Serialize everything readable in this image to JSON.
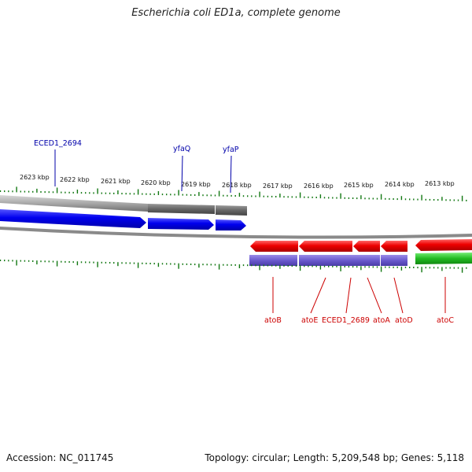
{
  "title": "Escherichia coli ED1a, complete genome",
  "footer": {
    "accession": "Accession: NC_011745",
    "summary": "Topology: circular; Length: 5,209,548 bp; Genes: 5,118"
  },
  "scale_labels": [
    "2623 kbp",
    "2622 kbp",
    "2621 kbp",
    "2620 kbp",
    "2619 kbp",
    "2618 kbp",
    "2617 kbp",
    "2616 kbp",
    "2615 kbp",
    "2614 kbp",
    "2613 kbp"
  ],
  "gene_labels_forward": [
    "ECED1_2694",
    "yfaQ",
    "yfaP"
  ],
  "gene_labels_reverse": [
    "atoB",
    "atoE",
    "ECED1_2689",
    "atoA",
    "atoD",
    "atoC"
  ],
  "colors": {
    "forward_cds": "#0000ee",
    "reverse_cds": "#ee0000",
    "forward_gene_band": "#777777",
    "reverse_gene_band": "#6a5acd",
    "green_band": "#22bb22",
    "tick": "#117711",
    "backbone": "#888888",
    "forward_label": "#0000aa",
    "reverse_label": "#cc0000"
  }
}
